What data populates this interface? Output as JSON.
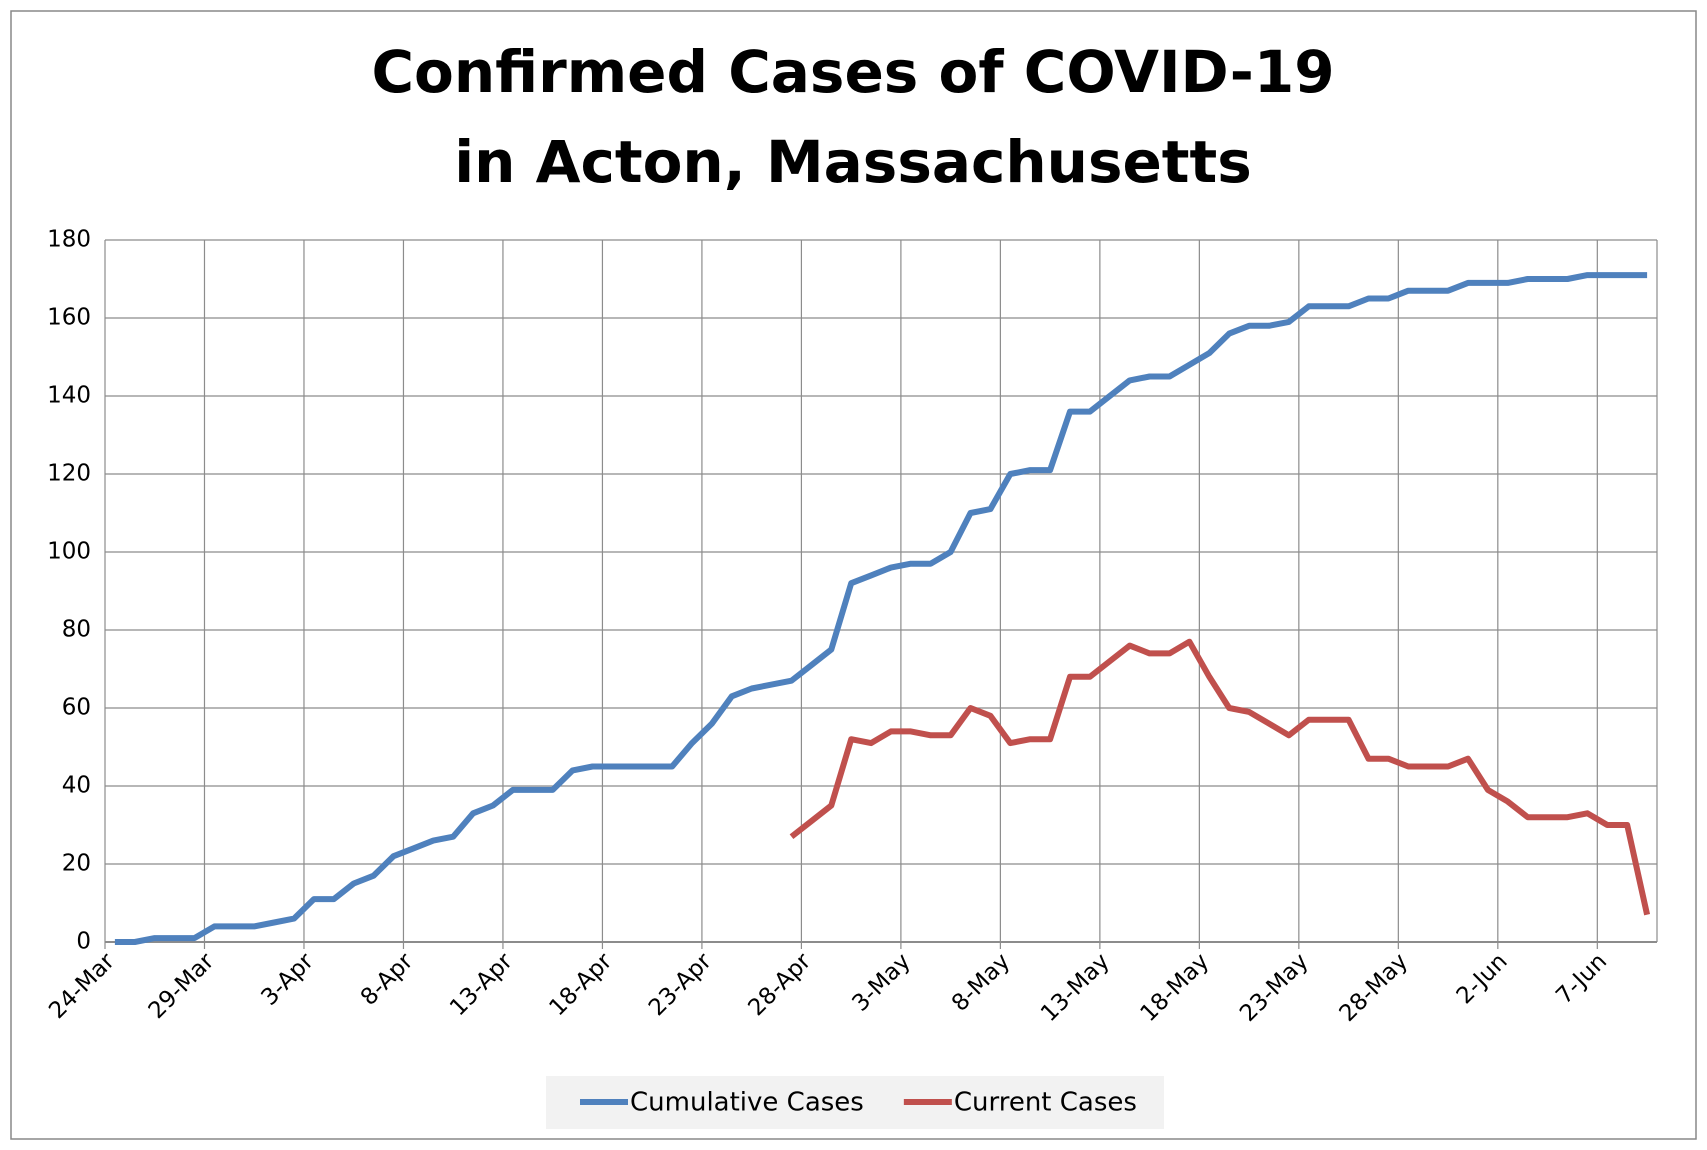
{
  "chart_data": {
    "type": "line",
    "title": [
      "Confirmed Cases of COVID-19",
      "in Acton, Massachusetts"
    ],
    "categories": [
      "24-Mar",
      null,
      null,
      null,
      null,
      "29-Mar",
      null,
      null,
      null,
      null,
      "3-Apr",
      null,
      null,
      null,
      null,
      "8-Apr",
      null,
      null,
      null,
      null,
      "13-Apr",
      null,
      null,
      null,
      null,
      "18-Apr",
      null,
      null,
      null,
      null,
      "23-Apr",
      null,
      null,
      null,
      null,
      "28-Apr",
      null,
      null,
      null,
      null,
      "3-May",
      null,
      null,
      null,
      null,
      "8-May",
      null,
      null,
      null,
      null,
      "13-May",
      null,
      null,
      null,
      null,
      "18-May",
      null,
      null,
      null,
      null,
      "23-May",
      null,
      null,
      null,
      null,
      "28-May",
      null,
      null,
      null,
      null,
      "2-Jun",
      null,
      null,
      null,
      null,
      "7-Jun",
      null,
      null
    ],
    "series": [
      {
        "name": "Cumulative Cases",
        "color": "#4f81bd",
        "values": [
          0,
          0,
          1,
          1,
          1,
          4,
          4,
          4,
          5,
          6,
          11,
          11,
          15,
          17,
          22,
          24,
          26,
          27,
          33,
          35,
          39,
          39,
          39,
          44,
          45,
          45,
          45,
          45,
          45,
          51,
          56,
          63,
          65,
          66,
          67,
          71,
          75,
          92,
          94,
          96,
          97,
          97,
          100,
          110,
          111,
          120,
          121,
          121,
          136,
          136,
          140,
          144,
          145,
          145,
          148,
          151,
          156,
          158,
          158,
          159,
          163,
          163,
          163,
          165,
          165,
          167,
          167,
          167,
          169,
          169,
          169,
          170,
          170,
          170,
          171,
          171,
          171,
          171
        ]
      },
      {
        "name": "Current Cases",
        "color": "#c0504d",
        "values": [
          null,
          null,
          null,
          null,
          null,
          null,
          null,
          null,
          null,
          null,
          null,
          null,
          null,
          null,
          null,
          null,
          null,
          null,
          null,
          null,
          null,
          null,
          null,
          null,
          null,
          null,
          null,
          null,
          null,
          null,
          null,
          null,
          null,
          null,
          27,
          31,
          35,
          52,
          51,
          54,
          54,
          53,
          53,
          60,
          58,
          51,
          52,
          52,
          68,
          68,
          72,
          76,
          74,
          74,
          77,
          68,
          60,
          59,
          56,
          53,
          57,
          57,
          57,
          47,
          47,
          45,
          45,
          45,
          47,
          39,
          36,
          32,
          32,
          32,
          33,
          30,
          30,
          7
        ]
      }
    ],
    "ylim": [
      0,
      180
    ],
    "yticks": [
      0,
      20,
      40,
      60,
      80,
      100,
      120,
      140,
      160,
      180
    ],
    "grid": true,
    "legend": "bottom"
  }
}
